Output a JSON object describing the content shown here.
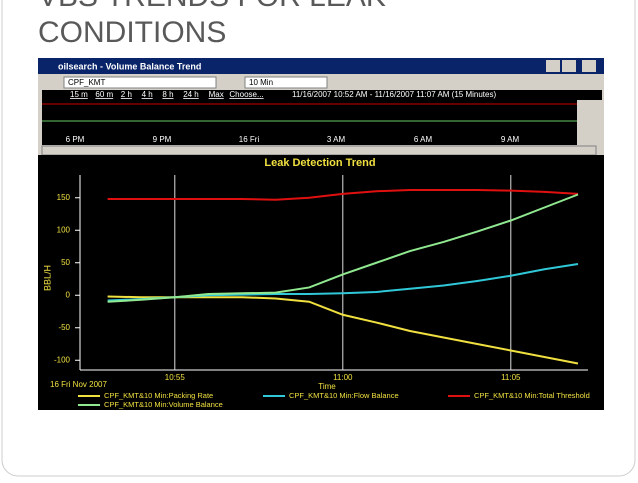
{
  "slide": {
    "title_lines": [
      "VBS TRENDS FOR LEAK",
      "CONDITIONS"
    ]
  },
  "window": {
    "title": "oilsearch - Volume Balance Trend",
    "site": "CPF_KMT",
    "interval": "10 Min",
    "ranges": [
      "15 m",
      "60 m",
      "2 h",
      "4 h",
      "8 h",
      "24 h",
      "Max",
      "Choose..."
    ],
    "period": "11/16/2007 10:52 AM - 11/16/2007 11:07 AM (15 Minutes)",
    "overview_labels": [
      "6 PM",
      "9 PM",
      "16 Fri",
      "3 AM",
      "6 AM",
      "9 AM"
    ]
  },
  "chart_data": {
    "type": "line",
    "title": "Leak Detection Trend",
    "y_label": "BBL/H",
    "x_label": "Time",
    "date_label": "16 Fri Nov 2007",
    "x": [
      "10:53",
      "10:54",
      "10:55",
      "10:56",
      "10:57",
      "10:58",
      "10:59",
      "11:00",
      "11:01",
      "11:02",
      "11:03",
      "11:04",
      "11:05",
      "11:06",
      "11:07"
    ],
    "xlim": [
      "10:52",
      "11:07"
    ],
    "xticks": [
      "10:55",
      "11:00",
      "11:05"
    ],
    "ylim": [
      -115,
      185
    ],
    "yticks": [
      150,
      100,
      50,
      0,
      -50,
      -100
    ],
    "series": [
      {
        "name": "CPF_KMT&10 Min:Packing Rate",
        "color": "#f0e040",
        "values": [
          -2,
          -3,
          -3,
          -3,
          -3,
          -5,
          -10,
          -30,
          -42,
          -55,
          -65,
          -75,
          -85,
          -95,
          -105
        ]
      },
      {
        "name": "CPF_KMT&10 Min:Flow Balance",
        "color": "#30c8d8",
        "values": [
          -8,
          -6,
          -3,
          0,
          1,
          2,
          2,
          3,
          5,
          10,
          15,
          22,
          30,
          40,
          48
        ]
      },
      {
        "name": "CPF_KMT&10 Min:Total Threshold",
        "color": "#e01010",
        "values": [
          148,
          148,
          148,
          148,
          148,
          147,
          150,
          156,
          160,
          162,
          162,
          162,
          161,
          159,
          156
        ]
      },
      {
        "name": "CPF_KMT&10 Min:Volume Balance",
        "color": "#90e890",
        "values": [
          -10,
          -7,
          -3,
          2,
          3,
          4,
          12,
          32,
          50,
          68,
          82,
          98,
          115,
          135,
          155
        ]
      }
    ]
  }
}
